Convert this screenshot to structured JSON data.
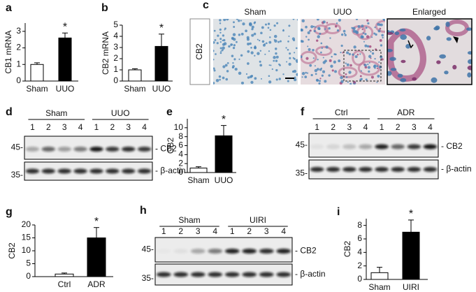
{
  "chart_data": [
    {
      "panel": "a",
      "type": "bar",
      "ylabel": "CB1 mRNA",
      "annotation": "*",
      "categories": [
        "Sham",
        "UUO"
      ],
      "values": [
        1.0,
        2.6
      ],
      "errors": [
        0.1,
        0.3
      ],
      "colors": [
        "#ffffff",
        "#000000"
      ],
      "ylim": [
        0,
        3.5
      ],
      "yticks": [
        0,
        1,
        2,
        3
      ]
    },
    {
      "panel": "b",
      "type": "bar",
      "ylabel": "CB2 mRNA",
      "annotation": "*",
      "categories": [
        "Sham",
        "UUO"
      ],
      "values": [
        1.0,
        3.1
      ],
      "errors": [
        0.1,
        1.1
      ],
      "colors": [
        "#ffffff",
        "#000000"
      ],
      "ylim": [
        0,
        5
      ],
      "yticks": [
        0,
        1,
        2,
        3,
        4,
        5
      ]
    },
    {
      "panel": "e",
      "type": "bar",
      "ylabel": "CB2",
      "annotation": "*",
      "categories": [
        "Sham",
        "UUO"
      ],
      "values": [
        1.0,
        8.2
      ],
      "errors": [
        0.3,
        2.3
      ],
      "colors": [
        "#ffffff",
        "#000000"
      ],
      "ylim": [
        0,
        12
      ],
      "yticks": [
        0,
        2,
        4,
        6,
        8,
        10
      ]
    },
    {
      "panel": "g",
      "type": "bar",
      "ylabel": "CB2",
      "annotation": "*",
      "categories": [
        "Ctrl",
        "ADR"
      ],
      "values": [
        1.0,
        15
      ],
      "errors": [
        0.4,
        4
      ],
      "colors": [
        "#ffffff",
        "#000000"
      ],
      "ylim": [
        0,
        20
      ],
      "yticks": [
        0,
        5,
        10,
        15,
        20
      ]
    },
    {
      "panel": "i",
      "type": "bar",
      "ylabel": "CB2",
      "annotation": "*",
      "categories": [
        "Sham",
        "UIRI"
      ],
      "values": [
        1.0,
        7.0
      ],
      "errors": [
        0.8,
        1.8
      ],
      "colors": [
        "#ffffff",
        "#000000"
      ],
      "ylim": [
        0,
        9
      ],
      "yticks": [
        0,
        2,
        4,
        6,
        8
      ]
    }
  ],
  "histology": {
    "panel": "c",
    "row_label": "CB2",
    "columns": [
      "Sham",
      "UUO",
      "Enlarged"
    ]
  },
  "blots": [
    {
      "panel": "d",
      "groups": [
        "Sham",
        "UUO"
      ],
      "lanes": [
        "1",
        "2",
        "3",
        "4",
        "1",
        "2",
        "3",
        "4"
      ],
      "markers": [
        "45-",
        "35-"
      ],
      "bands": [
        "- CB2",
        "- β-actin"
      ]
    },
    {
      "panel": "f",
      "groups": [
        "Ctrl",
        "ADR"
      ],
      "lanes": [
        "1",
        "2",
        "3",
        "4",
        "1",
        "2",
        "3",
        "4"
      ],
      "markers": [
        "45-",
        "35-"
      ],
      "bands": [
        "- CB2",
        "- β-actin"
      ]
    },
    {
      "panel": "h",
      "groups": [
        "Sham",
        "UIRI"
      ],
      "lanes": [
        "1",
        "2",
        "3",
        "4",
        "1",
        "2",
        "3",
        "4"
      ],
      "markers": [
        "45-",
        "35-"
      ],
      "bands": [
        "- CB2",
        "- β-actin"
      ]
    }
  ]
}
